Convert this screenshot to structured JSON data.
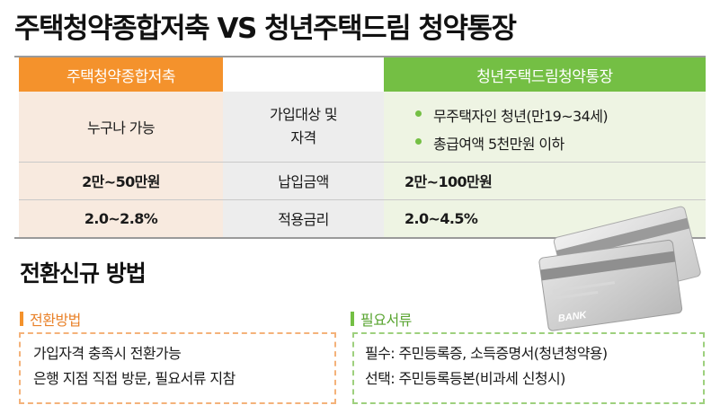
{
  "title": "주택청약종합저축 VS 청년주택드림 청약통장",
  "table": {
    "header_left": "주택청약종합저축",
    "header_right": "청년주택드림청약통장",
    "rows": [
      {
        "left": "누구나 가능",
        "label_line1": "가입대상 및",
        "label_line2": "자격",
        "right_bullets": [
          "무주택자인 청년(만19~34세)",
          "총급여액 5천만원 이하"
        ]
      },
      {
        "left": "2만~50만원",
        "label": "납입금액",
        "right": "2만~100만원"
      },
      {
        "left": "2.0~2.8%",
        "label": "적용금리",
        "right": "2.0~4.5%"
      }
    ]
  },
  "section": {
    "title": "전환신규 방법",
    "method": {
      "label": "전환방법",
      "lines": [
        "가입자격 충족시 전환가능",
        "은행 지점 직접 방문, 필요서류 지참"
      ]
    },
    "documents": {
      "label": "필요서류",
      "lines": [
        "필수: 주민등록증, 소득증명서(청년청약용)",
        "선택: 주민등록등본(비과세 신청시)"
      ]
    }
  },
  "illustration": {
    "icon": "bank-card-icon",
    "card_text": "BANK"
  },
  "colors": {
    "orange": "#f4922c",
    "green": "#74bf44"
  }
}
